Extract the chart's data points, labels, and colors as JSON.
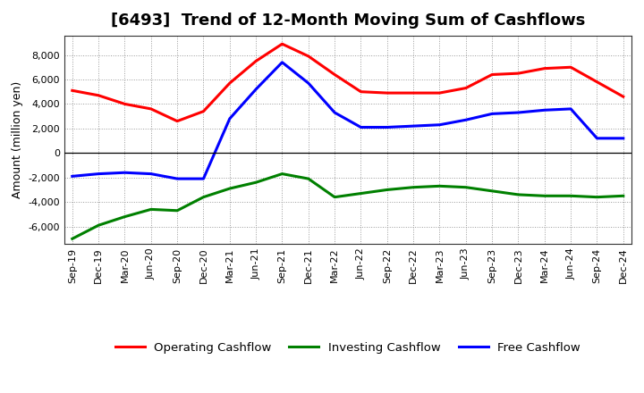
{
  "title": "[6493]  Trend of 12-Month Moving Sum of Cashflows",
  "ylabel": "Amount (million yen)",
  "x_labels": [
    "Sep-19",
    "Dec-19",
    "Mar-20",
    "Jun-20",
    "Sep-20",
    "Dec-20",
    "Mar-21",
    "Jun-21",
    "Sep-21",
    "Dec-21",
    "Mar-22",
    "Jun-22",
    "Sep-22",
    "Dec-22",
    "Mar-23",
    "Jun-23",
    "Sep-23",
    "Dec-23",
    "Mar-24",
    "Jun-24",
    "Sep-24",
    "Dec-24"
  ],
  "operating_cashflow": [
    5100,
    4700,
    4000,
    3600,
    2600,
    3400,
    5700,
    7500,
    8900,
    7900,
    6400,
    5000,
    4900,
    4900,
    4900,
    5300,
    6400,
    6500,
    6900,
    7000,
    5800,
    4600
  ],
  "investing_cashflow": [
    -7000,
    -5900,
    -5200,
    -4600,
    -4700,
    -3600,
    -2900,
    -2400,
    -1700,
    -2100,
    -3600,
    -3300,
    -3000,
    -2800,
    -2700,
    -2800,
    -3100,
    -3400,
    -3500,
    -3500,
    -3600,
    -3500
  ],
  "free_cashflow": [
    -1900,
    -1700,
    -1600,
    -1700,
    -2100,
    -2100,
    2800,
    5200,
    7400,
    5700,
    3300,
    2100,
    2100,
    2200,
    2300,
    2700,
    3200,
    3300,
    3500,
    3600,
    1200,
    1200
  ],
  "operating_color": "#ff0000",
  "investing_color": "#008000",
  "free_color": "#0000ff",
  "ylim": [
    -7400,
    9600
  ],
  "yticks": [
    -6000,
    -4000,
    -2000,
    0,
    2000,
    4000,
    6000,
    8000
  ],
  "background_color": "#ffffff",
  "grid_color": "#999999",
  "line_width": 2.2,
  "title_fontsize": 13,
  "label_fontsize": 9,
  "tick_fontsize": 8,
  "legend_fontsize": 9.5
}
